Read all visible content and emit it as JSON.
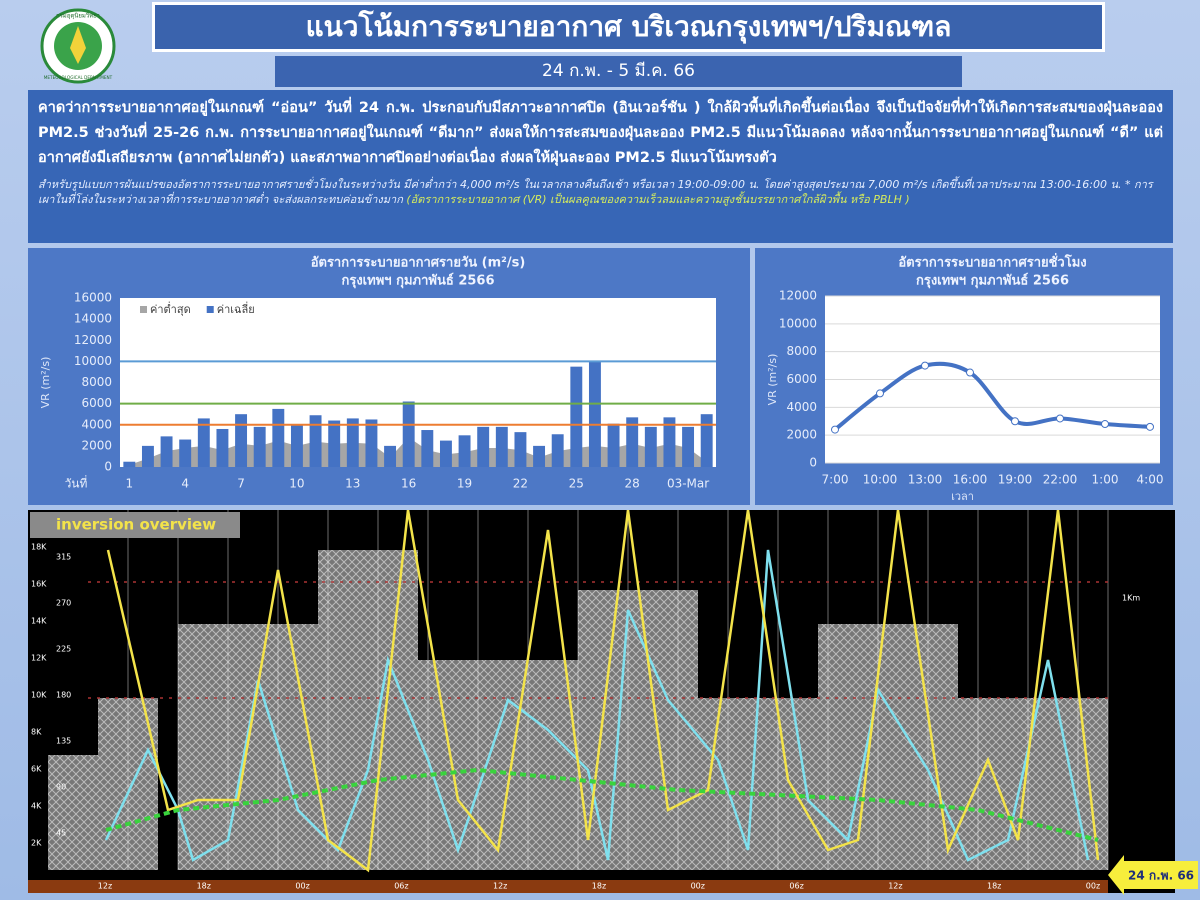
{
  "header": {
    "logo_text": "METEOROLOGICAL DEPARTMENT",
    "logo_thai": "กรมอุตุนิยมวิทยา",
    "title": "แนวโน้มการระบายอากาศ บริเวณกรุงเทพฯ/ปริมณฑล",
    "date": "24 ก.พ. - 5 มี.ค. 66"
  },
  "description": {
    "paragraph": "คาดว่าการระบายอากาศอยู่ในเกณฑ์ “อ่อน” วันที่ 24 ก.พ. ประกอบกับมีสภาวะอากาศปิด (อินเวอร์ชัน ) ใกล้ผิวพื้นที่เกิดขึ้นต่อเนื่อง จึงเป็นปัจจัยที่ทำให้เกิดการสะสมของฝุ่นละออง PM2.5 ช่วงวันที่ 25-26 ก.พ. การระบายอากาศอยู่ในเกณฑ์ “ดีมาก” ส่งผลให้การสะสมของฝุ่นละออง PM2.5 มีแนวโน้มลดลง หลังจากนั้นการระบายอากาศอยู่ในเกณฑ์ “ดี” แต่อากาศยังมีเสถียรภาพ (อากาศไม่ยกตัว) และสภาพอากาศปิดอย่างต่อเนื่อง ส่งผลให้ฝุ่นละออง PM2.5 มีแนวโน้มทรงตัว",
    "note": "สำหรับรูปแบบการผันแปรของอัตราการระบายอากาศรายชั่วโมงในระหว่างวัน มีค่าต่ำกว่า 4,000 m²/s ในเวลากลางคืนถึงเช้า หรือเวลา 19:00-09:00 น. โดยค่าสูงสุดประมาณ 7,000 m²/s เกิดขึ้นที่เวลาประมาณ 13:00-16:00 น. * การเผาในที่โล่งในระหว่างเวลาที่การระบายอากาศต่ำ จะส่งผลกระทบค่อนข้างมาก",
    "note_highlight": "(อัตราการระบายอากาศ (VR) เป็นผลคูณของความเร็วลมและความสูงชั้นบรรยากาศใกล้ผิวพื้น หรือ PBLH )"
  },
  "chart_data": [
    {
      "type": "bar",
      "title": "อัตราการระบายอากาศรายวัน (m²/s)",
      "subtitle": "กรุงเทพฯ กุมภาพันธ์ 2566",
      "y_label": "VR (m²/s)",
      "x_label": "วันที่",
      "categories": [
        "1",
        null,
        null,
        "4",
        null,
        null,
        "7",
        null,
        null,
        "10",
        null,
        null,
        "13",
        null,
        null,
        "16",
        null,
        null,
        "19",
        null,
        null,
        "22",
        null,
        null,
        "25",
        null,
        null,
        "28",
        null,
        null,
        "03-Mar",
        null
      ],
      "series": [
        {
          "name": "ค่าต่ำสุด",
          "color": "#a6a6a6",
          "style": "area",
          "values": [
            200,
            800,
            1500,
            1800,
            2000,
            1600,
            2200,
            2000,
            2500,
            2000,
            2400,
            2200,
            2300,
            2200,
            900,
            2800,
            1600,
            1200,
            1400,
            1800,
            1800,
            1600,
            900,
            1500,
            1800,
            2000,
            1800,
            2200,
            1800,
            2200,
            1800,
            500
          ]
        },
        {
          "name": "ค่าเฉลี่ย",
          "color": "#4472c4",
          "style": "bar",
          "values": [
            500,
            2000,
            2900,
            2600,
            4600,
            3600,
            5000,
            3800,
            5500,
            4000,
            4900,
            4400,
            4600,
            4500,
            2000,
            6200,
            3500,
            2500,
            3000,
            3800,
            3800,
            3300,
            2000,
            3100,
            9500,
            10000,
            4100,
            4700,
            3800,
            4700,
            3800,
            5000
          ]
        }
      ],
      "reference_lines": [
        {
          "value": 10000,
          "color": "#5b9bd5"
        },
        {
          "value": 6000,
          "color": "#70ad47"
        },
        {
          "value": 4000,
          "color": "#ed7d31"
        }
      ],
      "ylim": [
        0,
        16000
      ],
      "yticks": [
        0,
        2000,
        4000,
        6000,
        8000,
        10000,
        12000,
        14000,
        16000
      ],
      "legend": "top-left"
    },
    {
      "type": "line",
      "title": "อัตราการระบายอากาศรายชั่วโมง",
      "subtitle": "กรุงเทพฯ กุมภาพันธ์ 2566",
      "y_label": "VR (m²/s)",
      "x_label": "เวลา",
      "categories": [
        "7:00",
        "10:00",
        "13:00",
        "16:00",
        "19:00",
        "22:00",
        "1:00",
        "4:00"
      ],
      "values": [
        2400,
        5000,
        7000,
        6500,
        3000,
        3200,
        2800,
        2600
      ],
      "color": "#4472c4",
      "ylim": [
        0,
        12000
      ],
      "yticks": [
        0,
        2000,
        4000,
        6000,
        8000,
        10000,
        12000
      ],
      "grid": true
    }
  ],
  "inversion": {
    "label": "inversion overview",
    "height_labels": [
      "18K",
      "16K",
      "14K",
      "12K",
      "10K",
      "8K",
      "6K",
      "4K",
      "2K"
    ],
    "angle_labels": [
      "315",
      "270",
      "225",
      "180",
      "135",
      "90",
      "45"
    ],
    "level_label": "1Km",
    "time_labels": [
      "12z",
      "18z",
      "00z",
      "06z",
      "12z",
      "18z",
      "00z",
      "06z",
      "12z",
      "18z",
      "00z"
    ],
    "date_tag": "24 ก.พ. 66"
  }
}
